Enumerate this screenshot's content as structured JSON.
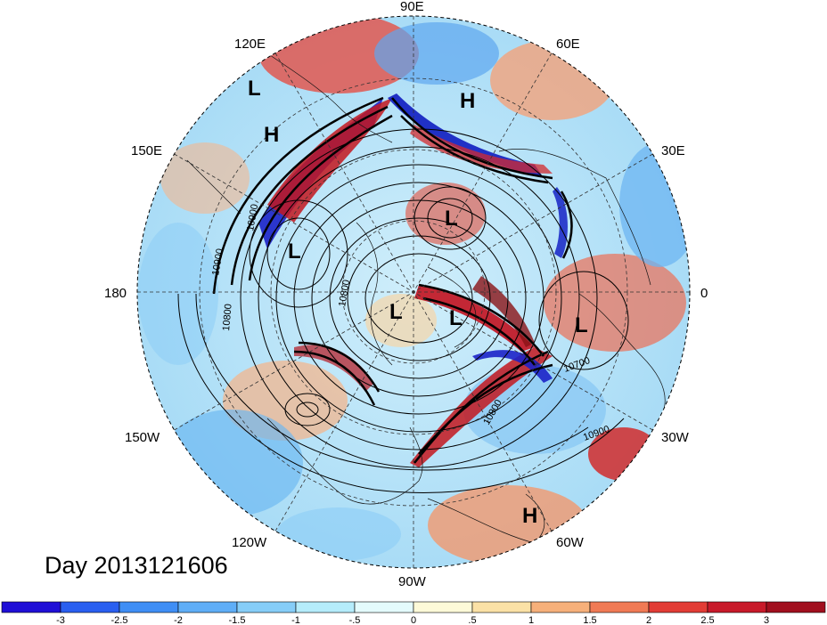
{
  "title": "Day 2013121606",
  "longitude_labels": [
    "90E",
    "60E",
    "30E",
    "0",
    "30W",
    "60W",
    "90W",
    "120W",
    "150W",
    "180",
    "150E",
    "120E"
  ],
  "pressure_centers": [
    {
      "type": "L",
      "lon_label": "near 120E"
    },
    {
      "type": "H",
      "lon_label": "near 130E"
    },
    {
      "type": "H",
      "lon_label": "near 70E"
    },
    {
      "type": "L",
      "lon_label": "near 60E"
    },
    {
      "type": "L",
      "lon_label": "near 160E"
    },
    {
      "type": "L",
      "lon_label": "pole"
    },
    {
      "type": "L",
      "lon_label": "near 30W"
    },
    {
      "type": "L",
      "lon_label": "near 10W"
    },
    {
      "type": "H",
      "lon_label": "near 60W"
    }
  ],
  "contour_labels": [
    "10900",
    "10800",
    "10700",
    "10800",
    "10900",
    "10800",
    "10900"
  ],
  "colorbar": {
    "ticks": [
      "-3",
      "-2.5",
      "-2",
      "-1.5",
      "-1",
      "-.5",
      "0",
      ".5",
      "1",
      "1.5",
      "2",
      "2.5",
      "3"
    ],
    "colors": [
      "#1f0fd6",
      "#2a5ff0",
      "#3f8ef5",
      "#5faef7",
      "#86cdf8",
      "#b5ecfb",
      "#e4fbfc",
      "#fdfad8",
      "#fbe1a6",
      "#f6b07a",
      "#f07a55",
      "#e23c35",
      "#c81a2a",
      "#a10f1e"
    ]
  }
}
